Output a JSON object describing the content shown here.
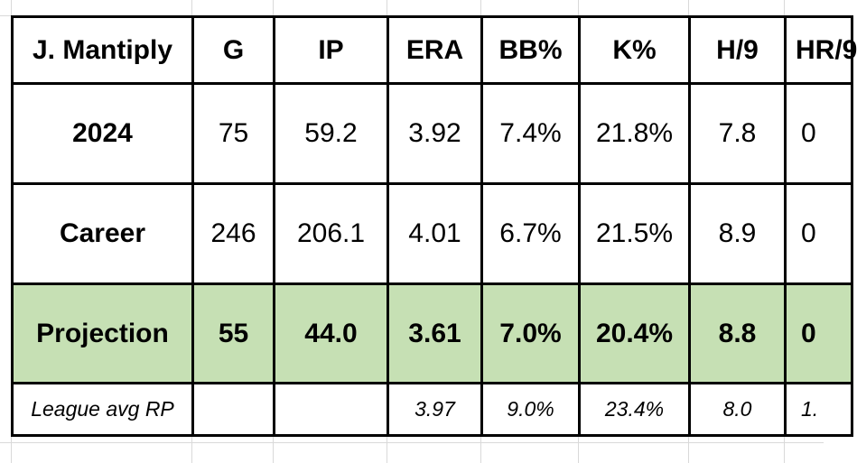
{
  "table": {
    "headers": [
      "J. Mantiply",
      "G",
      "IP",
      "ERA",
      "BB%",
      "K%",
      "H/9",
      "HR/9"
    ],
    "rows": [
      {
        "label": "2024",
        "cells": [
          "75",
          "59.2",
          "3.92",
          "7.4%",
          "21.8%",
          "7.8",
          "0"
        ]
      },
      {
        "label": "Career",
        "cells": [
          "246",
          "206.1",
          "4.01",
          "6.7%",
          "21.5%",
          "8.9",
          "0"
        ]
      },
      {
        "label": "Projection",
        "cells": [
          "55",
          "44.0",
          "3.61",
          "7.0%",
          "20.4%",
          "8.8",
          "0"
        ]
      },
      {
        "label": "League avg RP",
        "cells": [
          "",
          "",
          "3.97",
          "9.0%",
          "23.4%",
          "8.0",
          "1."
        ]
      }
    ]
  },
  "colors": {
    "projection_row_bg": "#c6e0b4",
    "border": "#000000",
    "gridline": "#d9d9d9"
  }
}
